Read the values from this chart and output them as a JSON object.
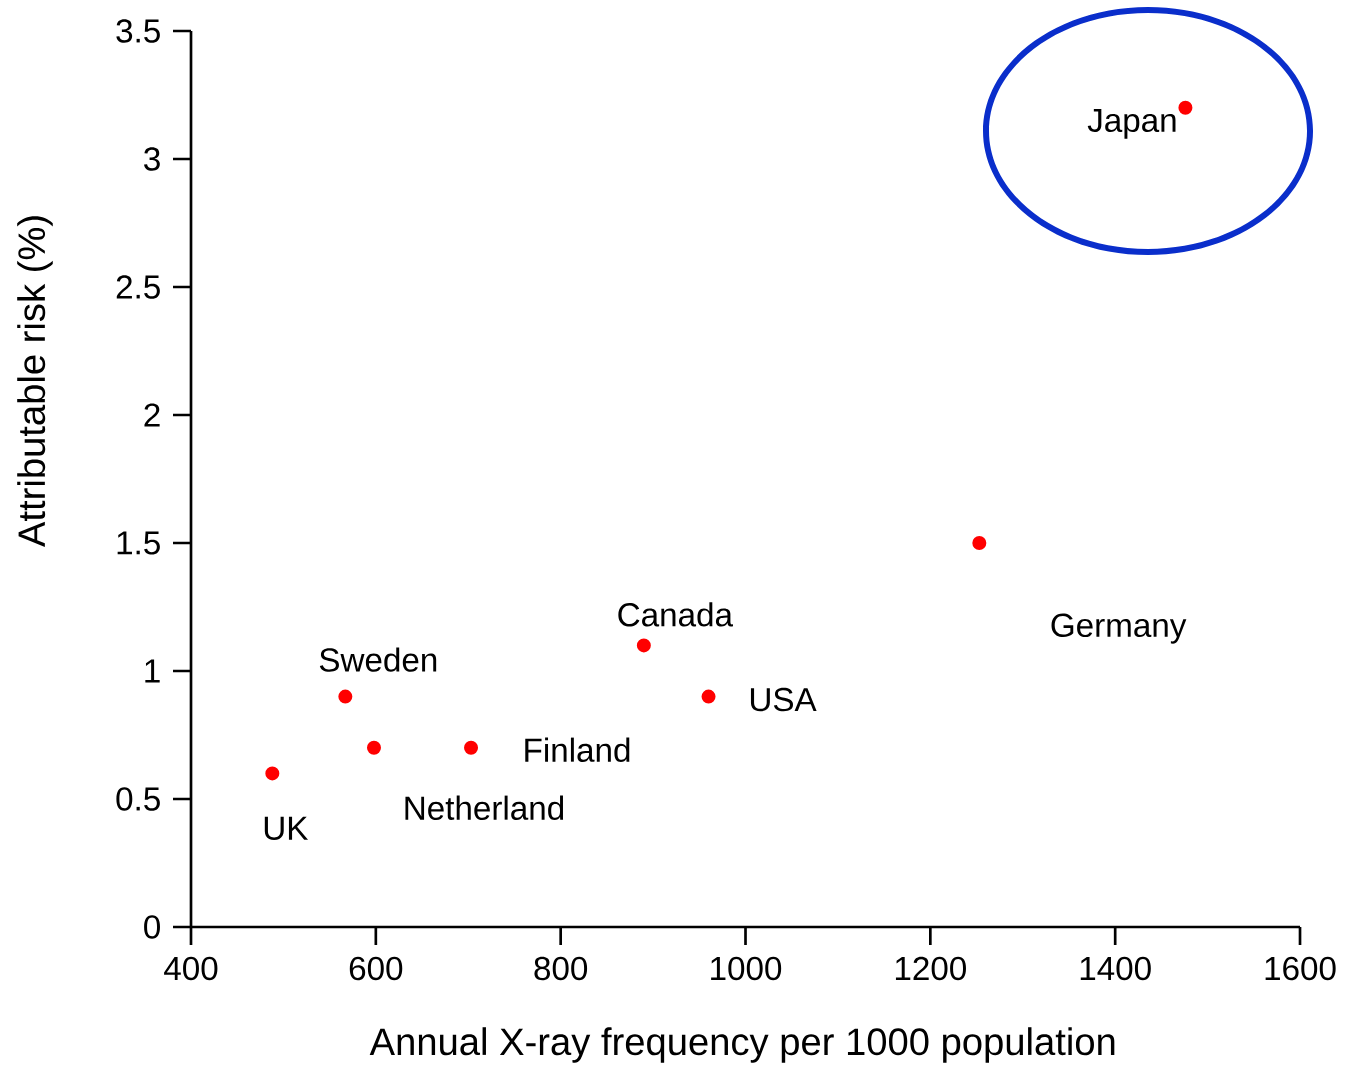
{
  "chart_data": {
    "type": "scatter",
    "xlabel": "Annual X-ray frequency per 1000 population",
    "ylabel": "Attributable risk (%)",
    "x": [
      488,
      567,
      598,
      703,
      890,
      960,
      1253,
      1476
    ],
    "values": [
      0.6,
      0.9,
      0.7,
      0.7,
      1.1,
      0.9,
      1.5,
      3.2
    ],
    "color": "#ff0000",
    "marker": "circle",
    "xlim": [
      400,
      1600
    ],
    "xticks": [
      400,
      600,
      800,
      1000,
      1200,
      1400,
      1600
    ],
    "ylim": [
      0,
      3.5
    ],
    "yticks": [
      0,
      0.5,
      1,
      1.5,
      2,
      2.5,
      3,
      3.5
    ],
    "annotations": [
      {
        "text": "UK",
        "x": 488,
        "y": 0.6
      },
      {
        "text": "Sweden",
        "x": 567,
        "y": 0.9
      },
      {
        "text": "Netherland",
        "x": 598,
        "y": 0.7
      },
      {
        "text": "Finland",
        "x": 703,
        "y": 0.7
      },
      {
        "text": "Canada",
        "x": 890,
        "y": 1.1
      },
      {
        "text": "USA",
        "x": 960,
        "y": 0.9
      },
      "Germany",
      {
        "text": "Japan",
        "x": 1476,
        "y": 3.2
      }
    ]
  }
}
